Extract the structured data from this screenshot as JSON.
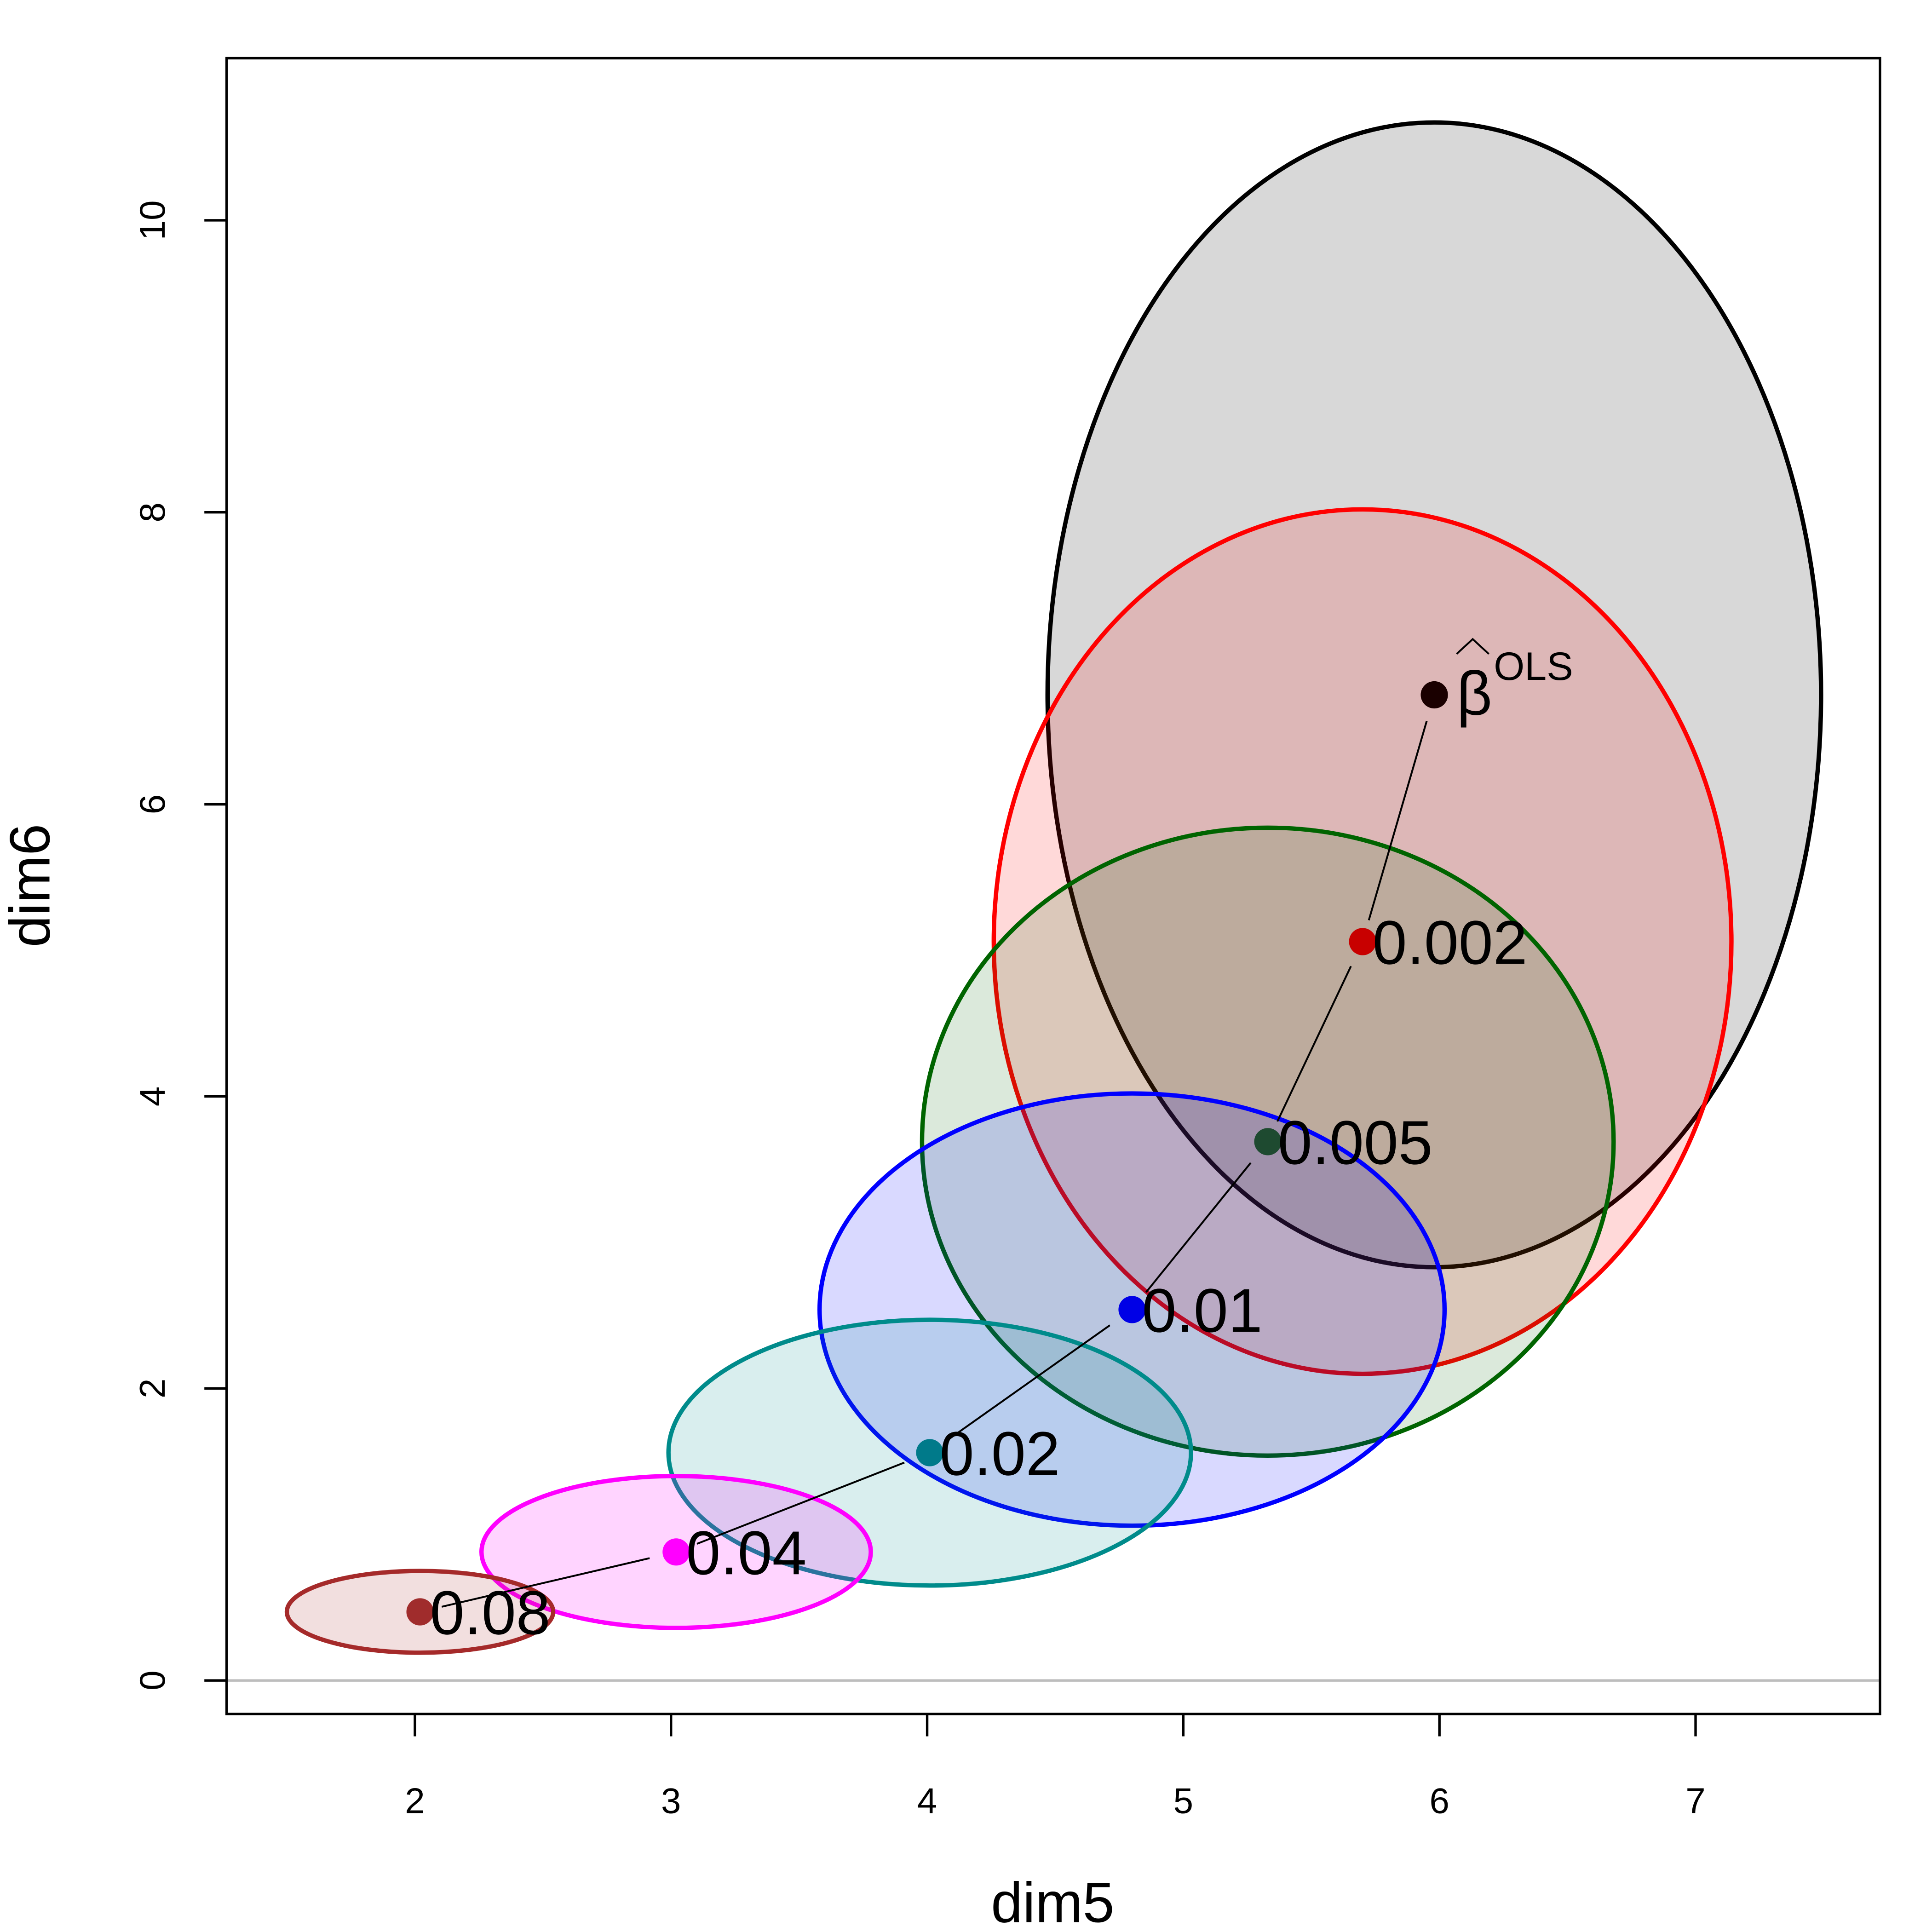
{
  "chart_data": {
    "type": "scatter",
    "title": "",
    "xlabel": "dim5",
    "ylabel": "dim6",
    "xlim": [
      1.265,
      7.72
    ],
    "ylim": [
      -0.23,
      11.11
    ],
    "x_ticks": [
      2,
      3,
      4,
      5,
      6,
      7
    ],
    "y_ticks": [
      0,
      2,
      4,
      6,
      8,
      10
    ],
    "grid": false,
    "reference_line_y": 0,
    "points": [
      {
        "label": "0.08",
        "x": 2.02,
        "y": 0.47,
        "rx": 0.52,
        "ry": 0.28,
        "color": "#a52a2a",
        "point_color": "#a02c2c",
        "fill": "rgba(165,42,42,0.15)"
      },
      {
        "label": "0.04",
        "x": 3.02,
        "y": 0.88,
        "rx": 0.76,
        "ry": 0.52,
        "color": "#ff00ff",
        "point_color": "#ff00ff",
        "fill": "rgba(255,0,255,0.17)"
      },
      {
        "label": "0.02",
        "x": 4.01,
        "y": 1.56,
        "rx": 1.02,
        "ry": 0.91,
        "color": "#008b8b",
        "point_color": "#007a8a",
        "fill": "rgba(0,139,139,0.15)"
      },
      {
        "label": "0.01",
        "x": 4.8,
        "y": 2.54,
        "rx": 1.22,
        "ry": 1.48,
        "color": "#0000ff",
        "point_color": "#0000e6",
        "fill": "rgba(0,0,255,0.15)"
      },
      {
        "label": "0.005",
        "x": 5.33,
        "y": 3.69,
        "rx": 1.35,
        "ry": 2.15,
        "color": "#006400",
        "point_color": "#1e4a30",
        "fill": "rgba(0,100,0,0.14)"
      },
      {
        "label": "0.002",
        "x": 5.7,
        "y": 5.06,
        "rx": 1.44,
        "ry": 2.96,
        "color": "#ff0000",
        "point_color": "#c80000",
        "fill": "rgba(255,0,0,0.15)"
      },
      {
        "label": "β",
        "label_sup": "OLS",
        "x": 5.98,
        "y": 6.75,
        "rx": 1.51,
        "ry": 3.92,
        "color": "#000000",
        "point_color": "#1a0000",
        "fill": "rgba(190,190,190,0.6)"
      }
    ]
  }
}
